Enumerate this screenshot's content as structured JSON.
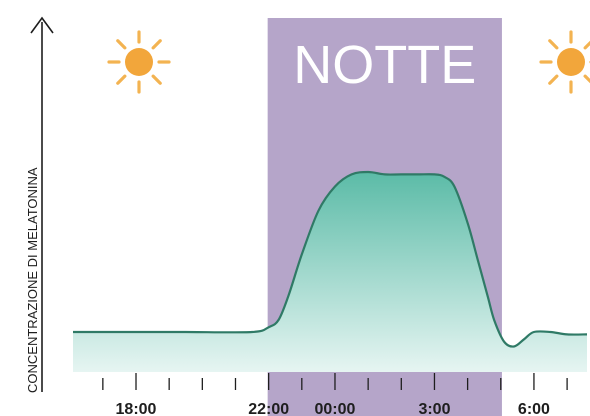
{
  "chart_data": {
    "type": "area",
    "title": "",
    "ylabel": "CONCENTRAZIONE DI MELATONINA",
    "xlabel": "",
    "night_label": "NOTTE",
    "x_tick_labels": [
      "18:00",
      "22:00",
      "00:00",
      "3:00",
      "6:00"
    ],
    "x_label_hours": [
      18,
      22,
      24,
      27,
      30
    ],
    "x_minor_ticks_hours": [
      17,
      18,
      19,
      20,
      21,
      22,
      23,
      24,
      25,
      26,
      27,
      28,
      29,
      30,
      31
    ],
    "xlim": [
      16.1,
      31.6
    ],
    "ylim": [
      -0.16,
      1.0
    ],
    "night_range_hours": [
      22,
      30
    ],
    "grid": false,
    "series": [
      {
        "x": [
          16.1,
          18,
          19.5,
          21.5,
          22,
          22.3,
          22.6,
          23,
          23.5,
          24,
          24.5,
          25,
          25.5,
          26,
          26.5,
          27,
          27.3,
          27.6,
          28,
          28.3,
          28.6,
          28.8,
          29.1,
          29.4,
          29.7,
          30,
          30.5,
          31,
          31.6
        ],
        "y": [
          0.0,
          0.0,
          0.0,
          0.0,
          0.02,
          0.05,
          0.15,
          0.32,
          0.5,
          0.6,
          0.65,
          0.66,
          0.65,
          0.65,
          0.65,
          0.65,
          0.64,
          0.6,
          0.45,
          0.3,
          0.15,
          0.05,
          -0.04,
          -0.06,
          -0.03,
          0.0,
          0.0,
          -0.01,
          -0.01
        ]
      }
    ]
  },
  "icons": {
    "sun_left": "sun-icon",
    "sun_right": "sun-icon"
  },
  "colors": {
    "night": "#b5a5c9",
    "curve": "#2f7a66",
    "fill_top": "#5bbba7",
    "fill_bottom": "#e6f5f2",
    "sun_core": "#f2a63b",
    "sun_rays": "#f3b351"
  }
}
